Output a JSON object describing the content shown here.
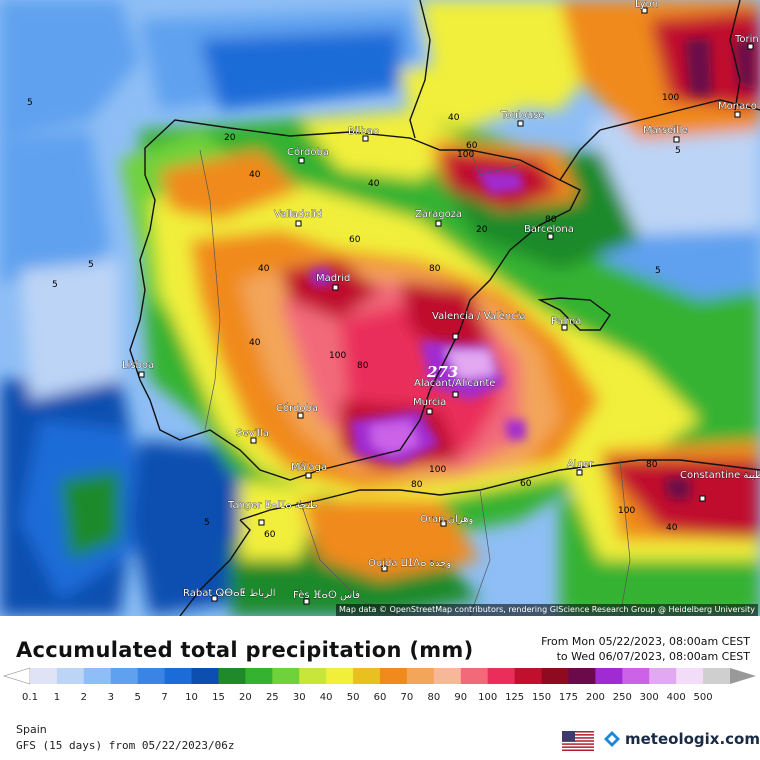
{
  "map": {
    "attribution": "Map data © OpenStreetMap contributors, rendering GIScience Research Group @ Heidelberg University",
    "max_value": "273",
    "cities": [
      {
        "name": "Lyon"
      },
      {
        "name": "Torin"
      },
      {
        "name": "Monaco"
      },
      {
        "name": "Marseille"
      },
      {
        "name": "Toulouse"
      },
      {
        "name": "Bilbao"
      },
      {
        "name": "Córdoba"
      },
      {
        "name": "Valladolid"
      },
      {
        "name": "Zaragoza"
      },
      {
        "name": "Barcelona"
      },
      {
        "name": "Madrid"
      },
      {
        "name": "Valencia / València"
      },
      {
        "name": "Palma"
      },
      {
        "name": "Lisboa"
      },
      {
        "name": "Alacant/Alicante"
      },
      {
        "name": "Murcia"
      },
      {
        "name": "Córdoba"
      },
      {
        "name": "Sevilla"
      },
      {
        "name": "Málaga"
      },
      {
        "name": "Alger"
      },
      {
        "name": "Constantine قسنطينة"
      },
      {
        "name": "Tanger ⵟⴰⵏⵊⴰ طنجة"
      },
      {
        "name": "Oran وهران"
      },
      {
        "name": "Oujda ⵡⵊⴷⴰ وجدة"
      },
      {
        "name": "Rabat ⵕⴱⴰⵟ الرباط"
      },
      {
        "name": "Fès ⴼⴰⵙ فاس"
      }
    ],
    "contour_labels": [
      "5",
      "5",
      "5",
      "5",
      "5",
      "20",
      "40",
      "40",
      "40",
      "40",
      "40",
      "60",
      "60",
      "60",
      "80",
      "80",
      "80",
      "80",
      "100",
      "100",
      "100",
      "100",
      "20",
      "40",
      "60",
      "80",
      "100",
      "5"
    ]
  },
  "legend": {
    "title": "Accumulated total precipitation (mm)",
    "from": "From Mon 05/22/2023, 08:00am CEST",
    "to": "to Wed 06/07/2023, 08:00am CEST",
    "levels": [
      "0.1",
      "1",
      "2",
      "3",
      "5",
      "7",
      "10",
      "15",
      "20",
      "25",
      "30",
      "40",
      "50",
      "60",
      "70",
      "80",
      "90",
      "100",
      "125",
      "150",
      "175",
      "200",
      "250",
      "300",
      "400",
      "500"
    ],
    "colors": [
      "#dfe3f5",
      "#bcd4f6",
      "#8ebef5",
      "#5fa1ef",
      "#3a84e6",
      "#1b6cd8",
      "#0d4fb0",
      "#1f8a2a",
      "#35b230",
      "#6fd23a",
      "#c8e639",
      "#f1ef3a",
      "#e8c020",
      "#f08a1c",
      "#f3a65a",
      "#f7b89a",
      "#f26a7a",
      "#ea2d5b",
      "#c0102e",
      "#8e0a1e",
      "#6a0a4a",
      "#a12bd2",
      "#cb62e8",
      "#e3a8f2",
      "#f2dcf7",
      "#cfcfcf"
    ],
    "below_color": "#ffffff",
    "above_color": "#999999"
  },
  "footer": {
    "region": "Spain",
    "model": "GFS (15 days) from 05/22/2023/06z",
    "brand": "meteologix.com"
  }
}
